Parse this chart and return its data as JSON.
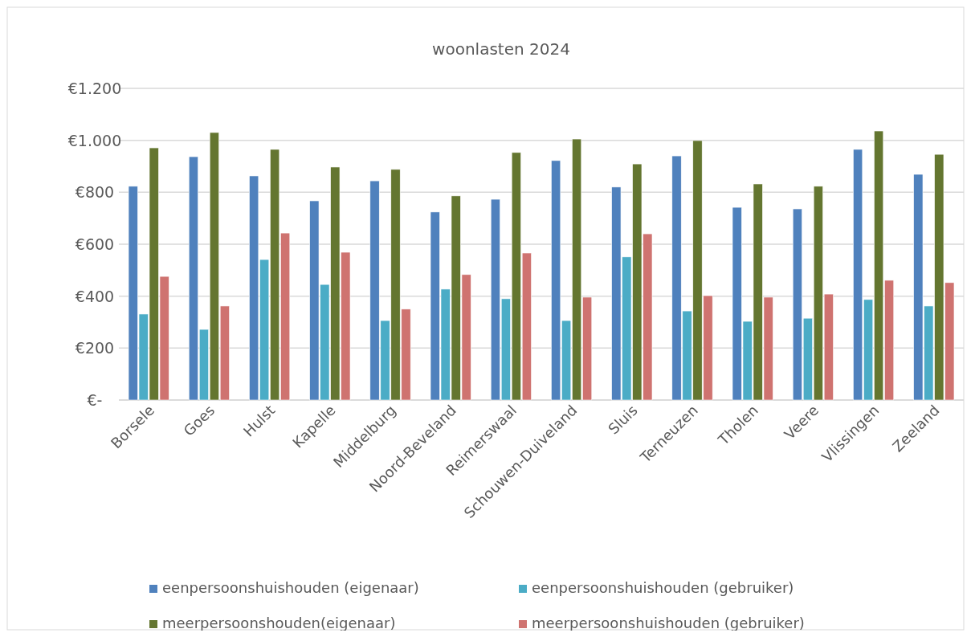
{
  "chart_data": {
    "type": "bar",
    "title": "woonlasten 2024",
    "categories": [
      "Borsele",
      "Goes",
      "Hulst",
      "Kapelle",
      "Middelburg",
      "Noord-Beveland",
      "Reimerswaal",
      "Schouwen-Duiveland",
      "Sluis",
      "Terneuzen",
      "Tholen",
      "Veere",
      "Vlissingen",
      "Zeeland"
    ],
    "series": [
      {
        "name": "eenpersoonshuishouden (eigenaar)",
        "color": "#4f81bd",
        "values": [
          823,
          937,
          863,
          767,
          844,
          724,
          773,
          922,
          820,
          940,
          742,
          736,
          965,
          869
        ]
      },
      {
        "name": "eenpersoonshuishouden (gebruiker)",
        "color": "#4bacc6",
        "values": [
          331,
          272,
          541,
          445,
          306,
          427,
          390,
          306,
          551,
          343,
          303,
          315,
          387,
          362
        ]
      },
      {
        "name": "meerpersoonshouden(eigenaar)",
        "color": "#647630",
        "values": [
          971,
          1030,
          965,
          897,
          888,
          786,
          953,
          1005,
          909,
          999,
          832,
          823,
          1036,
          946
        ]
      },
      {
        "name": "meerpersoonshuishouden (gebruiker)",
        "color": "#cf7370",
        "values": [
          476,
          362,
          643,
          569,
          350,
          483,
          566,
          396,
          640,
          402,
          396,
          408,
          461,
          452
        ]
      }
    ],
    "ylim": [
      0,
      1200
    ],
    "yticks": [
      {
        "value": 0,
        "label": "€-"
      },
      {
        "value": 200,
        "label": "€200"
      },
      {
        "value": 400,
        "label": "€400"
      },
      {
        "value": 600,
        "label": "€600"
      },
      {
        "value": 800,
        "label": "€800"
      },
      {
        "value": 1000,
        "label": "€1.000"
      },
      {
        "value": 1200,
        "label": "€1.200"
      }
    ],
    "grid": "y",
    "legend": "bottom"
  }
}
